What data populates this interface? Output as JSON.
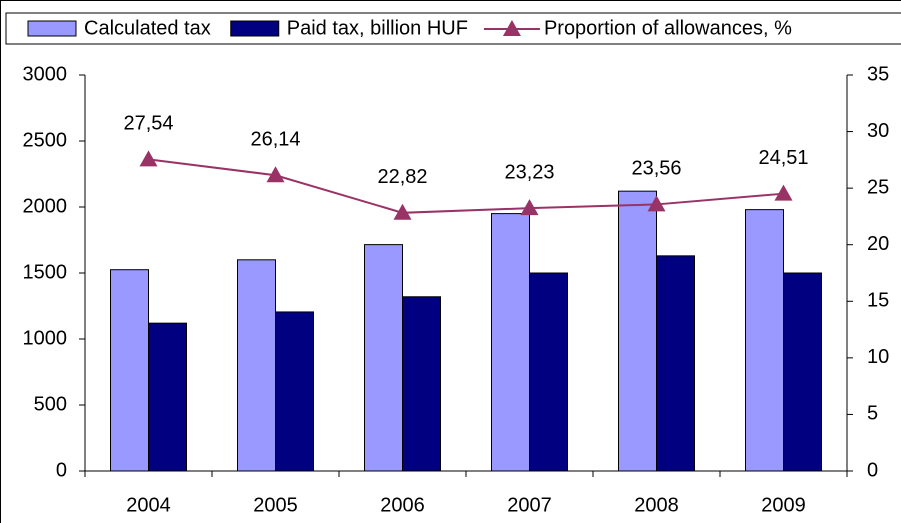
{
  "chart_data": {
    "type": "bar_line",
    "categories": [
      "2004",
      "2005",
      "2006",
      "2007",
      "2008",
      "2009"
    ],
    "series": [
      {
        "name": "Calculated tax",
        "color": "#9999ff",
        "type": "bar",
        "values": [
          1525,
          1600,
          1715,
          1950,
          2120,
          1980
        ]
      },
      {
        "name": "Paid tax, billion HUF",
        "color": "#000080",
        "type": "bar",
        "values": [
          1120,
          1205,
          1320,
          1500,
          1630,
          1500
        ]
      },
      {
        "name": "Proportion of allowances, %",
        "color": "#993366",
        "type": "line",
        "axis": "y2",
        "values": [
          27.54,
          26.14,
          22.82,
          23.23,
          23.56,
          24.51
        ],
        "value_labels": [
          "27,54",
          "26,14",
          "22,82",
          "23,23",
          "23,56",
          "24,51"
        ]
      }
    ],
    "ylim": [
      0,
      3000
    ],
    "yticks": [
      0,
      500,
      1000,
      1500,
      2000,
      2500,
      3000
    ],
    "y2lim": [
      0,
      35
    ],
    "y2ticks": [
      0,
      5,
      10,
      15,
      20,
      25,
      30,
      35
    ],
    "legend": "top"
  }
}
